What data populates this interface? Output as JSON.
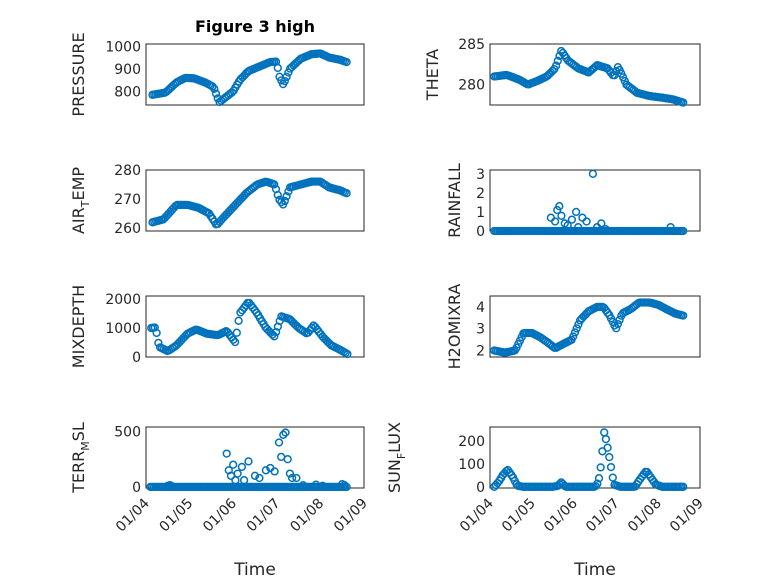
{
  "chart_data": [
    {
      "type": "scatter",
      "id": "pressure",
      "title": "Figure 3 high",
      "ylabel": "PRESSURE",
      "xlabel": "",
      "xlim": [
        0,
        5
      ],
      "ylim": [
        740,
        1010
      ],
      "yticks": [
        800,
        900,
        1000
      ],
      "xticklabels": [],
      "grid": "minor",
      "marker_color": "#0072bd",
      "keys": [
        [
          0.15,
          785
        ],
        [
          0.45,
          795
        ],
        [
          0.7,
          840
        ],
        [
          0.9,
          860
        ],
        [
          1.1,
          858
        ],
        [
          1.35,
          840
        ],
        [
          1.55,
          820
        ],
        [
          1.68,
          752
        ],
        [
          1.8,
          770
        ],
        [
          2.0,
          800
        ],
        [
          2.15,
          850
        ],
        [
          2.35,
          890
        ],
        [
          2.6,
          910
        ],
        [
          2.85,
          930
        ],
        [
          3.0,
          932
        ],
        [
          3.05,
          870
        ],
        [
          3.15,
          830
        ],
        [
          3.3,
          900
        ],
        [
          3.55,
          945
        ],
        [
          3.8,
          965
        ],
        [
          4.0,
          968
        ],
        [
          4.2,
          950
        ],
        [
          4.45,
          940
        ],
        [
          4.6,
          930
        ]
      ]
    },
    {
      "type": "scatter",
      "id": "theta",
      "title": "",
      "ylabel": "THETA",
      "xlabel": "",
      "xlim": [
        0,
        5
      ],
      "ylim": [
        277.5,
        285
      ],
      "yticks": [
        280,
        285
      ],
      "xticklabels": [],
      "grid": "minor",
      "marker_color": "#0072bd",
      "keys": [
        [
          0.1,
          281
        ],
        [
          0.4,
          281.2
        ],
        [
          0.7,
          280.6
        ],
        [
          0.9,
          280
        ],
        [
          1.1,
          280.4
        ],
        [
          1.35,
          281
        ],
        [
          1.55,
          282
        ],
        [
          1.7,
          284.2
        ],
        [
          1.85,
          283
        ],
        [
          2.1,
          282
        ],
        [
          2.35,
          281.5
        ],
        [
          2.55,
          282.4
        ],
        [
          2.8,
          282
        ],
        [
          2.95,
          281
        ],
        [
          3.05,
          282.2
        ],
        [
          3.25,
          280
        ],
        [
          3.5,
          279
        ],
        [
          3.8,
          278.6
        ],
        [
          4.1,
          278.4
        ],
        [
          4.35,
          278.2
        ],
        [
          4.6,
          277.8
        ]
      ]
    },
    {
      "type": "scatter",
      "id": "airtemp",
      "title": "",
      "ylabel": "AIR_TEMP",
      "ylabel_main": "AIR",
      "ylabel_sub": "T",
      "ylabel_rest": "EMP",
      "xlabel": "",
      "xlim": [
        0,
        5
      ],
      "ylim": [
        259,
        280
      ],
      "yticks": [
        260,
        270,
        280
      ],
      "xticklabels": [],
      "grid": "minor",
      "marker_color": "#0072bd",
      "keys": [
        [
          0.15,
          262
        ],
        [
          0.4,
          263
        ],
        [
          0.7,
          268
        ],
        [
          0.95,
          268
        ],
        [
          1.2,
          267
        ],
        [
          1.45,
          265
        ],
        [
          1.62,
          261
        ],
        [
          1.8,
          264
        ],
        [
          2.05,
          268
        ],
        [
          2.3,
          272
        ],
        [
          2.55,
          275
        ],
        [
          2.75,
          276
        ],
        [
          2.95,
          275
        ],
        [
          3.05,
          270
        ],
        [
          3.15,
          268
        ],
        [
          3.3,
          274
        ],
        [
          3.55,
          275
        ],
        [
          3.8,
          276
        ],
        [
          4.0,
          276
        ],
        [
          4.2,
          274
        ],
        [
          4.45,
          273
        ],
        [
          4.6,
          272
        ]
      ]
    },
    {
      "type": "scatter",
      "id": "rainfall",
      "title": "",
      "ylabel": "RAINFALL",
      "xlabel": "",
      "xlim": [
        0,
        5
      ],
      "ylim": [
        0,
        3.2
      ],
      "yticks": [
        0,
        1,
        2,
        3
      ],
      "xticklabels": [],
      "grid": "minor",
      "marker_color": "#0072bd",
      "extra": [
        [
          1.45,
          0.7
        ],
        [
          1.55,
          0.5
        ],
        [
          1.6,
          1.1
        ],
        [
          1.65,
          1.3
        ],
        [
          1.7,
          0.8
        ],
        [
          1.78,
          0.4
        ],
        [
          1.85,
          0.3
        ],
        [
          1.95,
          0.6
        ],
        [
          2.05,
          1.0
        ],
        [
          2.1,
          0.2
        ],
        [
          2.2,
          0.7
        ],
        [
          2.3,
          0.5
        ],
        [
          2.45,
          3.0
        ],
        [
          2.55,
          0.2
        ],
        [
          2.65,
          0.4
        ],
        [
          2.75,
          0.1
        ],
        [
          4.3,
          0.2
        ]
      ]
    },
    {
      "type": "scatter",
      "id": "mixdepth",
      "title": "",
      "ylabel": "MIXDEPTH",
      "xlabel": "",
      "xlim": [
        0,
        5
      ],
      "ylim": [
        0,
        2100
      ],
      "yticks": [
        0,
        1000,
        2000
      ],
      "xticklabels": [],
      "grid": "minor",
      "marker_color": "#0072bd",
      "keys": [
        [
          0.12,
          1000
        ],
        [
          0.22,
          1020
        ],
        [
          0.3,
          350
        ],
        [
          0.5,
          200
        ],
        [
          0.7,
          400
        ],
        [
          0.95,
          800
        ],
        [
          1.15,
          950
        ],
        [
          1.4,
          800
        ],
        [
          1.65,
          750
        ],
        [
          1.85,
          900
        ],
        [
          2.05,
          500
        ],
        [
          2.15,
          1500
        ],
        [
          2.35,
          1900
        ],
        [
          2.55,
          1500
        ],
        [
          2.75,
          1000
        ],
        [
          2.95,
          700
        ],
        [
          3.1,
          1400
        ],
        [
          3.3,
          1300
        ],
        [
          3.5,
          1000
        ],
        [
          3.7,
          800
        ],
        [
          3.85,
          1100
        ],
        [
          4.05,
          700
        ],
        [
          4.25,
          400
        ],
        [
          4.45,
          250
        ],
        [
          4.62,
          100
        ]
      ]
    },
    {
      "type": "scatter",
      "id": "h2omixra",
      "title": "",
      "ylabel": "H2OMIXRA",
      "xlabel": "",
      "xlim": [
        0,
        5
      ],
      "ylim": [
        1.7,
        4.5
      ],
      "yticks": [
        2,
        3,
        4
      ],
      "xticklabels": [],
      "grid": "minor",
      "marker_color": "#0072bd",
      "keys": [
        [
          0.1,
          2.0
        ],
        [
          0.35,
          1.9
        ],
        [
          0.6,
          2.0
        ],
        [
          0.8,
          2.8
        ],
        [
          1.0,
          2.8
        ],
        [
          1.2,
          2.6
        ],
        [
          1.35,
          2.4
        ],
        [
          1.55,
          2.1
        ],
        [
          1.75,
          2.3
        ],
        [
          1.95,
          2.5
        ],
        [
          2.15,
          3.4
        ],
        [
          2.35,
          3.8
        ],
        [
          2.55,
          4.0
        ],
        [
          2.7,
          4.0
        ],
        [
          2.85,
          3.6
        ],
        [
          3.0,
          3.0
        ],
        [
          3.15,
          3.7
        ],
        [
          3.35,
          3.9
        ],
        [
          3.55,
          4.2
        ],
        [
          3.8,
          4.2
        ],
        [
          4.0,
          4.1
        ],
        [
          4.2,
          3.9
        ],
        [
          4.4,
          3.7
        ],
        [
          4.6,
          3.6
        ]
      ]
    },
    {
      "type": "scatter",
      "id": "terrmsl",
      "title": "",
      "ylabel": "TERR_MSL",
      "ylabel_main": "TERR",
      "ylabel_sub": "M",
      "ylabel_rest": "SL",
      "xlabel": "Time",
      "xlim": [
        0,
        5
      ],
      "ylim": [
        -10,
        540
      ],
      "yticks": [
        0,
        500
      ],
      "xticks": [
        0,
        1,
        2,
        3,
        4,
        5
      ],
      "xticklabels": [
        "01/04",
        "01/05",
        "01/06",
        "01/07",
        "01/08",
        "01/09"
      ],
      "grid": "minor",
      "marker_color": "#0072bd",
      "extra": [
        [
          0.5,
          10
        ],
        [
          0.55,
          15
        ],
        [
          0.6,
          5
        ],
        [
          1.85,
          300
        ],
        [
          1.9,
          150
        ],
        [
          1.95,
          100
        ],
        [
          2.0,
          200
        ],
        [
          2.05,
          60
        ],
        [
          2.1,
          120
        ],
        [
          2.2,
          180
        ],
        [
          2.25,
          60
        ],
        [
          2.35,
          230
        ],
        [
          2.5,
          100
        ],
        [
          2.6,
          80
        ],
        [
          2.75,
          150
        ],
        [
          2.85,
          170
        ],
        [
          2.95,
          140
        ],
        [
          3.05,
          400
        ],
        [
          3.1,
          270
        ],
        [
          3.15,
          470
        ],
        [
          3.2,
          490
        ],
        [
          3.25,
          250
        ],
        [
          3.3,
          120
        ],
        [
          3.35,
          80
        ],
        [
          3.45,
          80
        ],
        [
          3.6,
          15
        ],
        [
          3.9,
          20
        ],
        [
          4.05,
          10
        ],
        [
          4.5,
          25
        ],
        [
          4.55,
          15
        ]
      ]
    },
    {
      "type": "scatter",
      "id": "sunflux",
      "title": "",
      "ylabel": "SUN_FLUX",
      "ylabel_main": "SUN",
      "ylabel_sub": "F",
      "ylabel_rest": "LUX",
      "xlabel": "Time",
      "xlim": [
        0,
        5
      ],
      "ylim": [
        -5,
        260
      ],
      "yticks": [
        0,
        100,
        200
      ],
      "xticks": [
        0,
        1,
        2,
        3,
        4,
        5
      ],
      "xticklabels": [
        "01/04",
        "01/05",
        "01/06",
        "01/07",
        "01/08",
        "01/09"
      ],
      "grid": "minor",
      "marker_color": "#0072bd",
      "keys": [
        [
          0.1,
          0
        ],
        [
          0.2,
          20
        ],
        [
          0.3,
          50
        ],
        [
          0.42,
          75
        ],
        [
          0.55,
          40
        ],
        [
          0.65,
          5
        ],
        [
          0.8,
          0
        ],
        [
          1.5,
          0
        ],
        [
          1.62,
          5
        ],
        [
          1.7,
          20
        ],
        [
          1.8,
          0
        ],
        [
          2.5,
          0
        ],
        [
          2.58,
          20
        ],
        [
          2.65,
          100
        ],
        [
          2.72,
          240
        ],
        [
          2.78,
          190
        ],
        [
          2.86,
          110
        ],
        [
          2.95,
          10
        ],
        [
          3.1,
          0
        ],
        [
          3.45,
          0
        ],
        [
          3.6,
          40
        ],
        [
          3.72,
          70
        ],
        [
          3.85,
          35
        ],
        [
          3.95,
          10
        ],
        [
          4.1,
          0
        ],
        [
          4.6,
          0
        ]
      ]
    }
  ]
}
